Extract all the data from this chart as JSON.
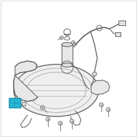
{
  "bg_color": "#ffffff",
  "line_color": "#999999",
  "dark_line": "#666666",
  "highlight_color": "#29b6d4",
  "fig_width": 2.0,
  "fig_height": 2.0,
  "dpi": 100
}
